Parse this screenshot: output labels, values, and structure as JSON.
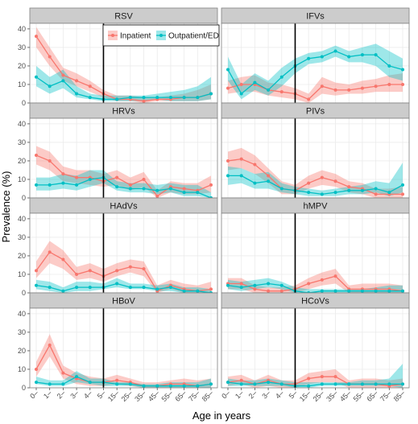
{
  "chart_data": {
    "type": "line",
    "xlabel": "Age in years",
    "ylabel": "Prevalence (%)",
    "ylim": [
      0,
      43
    ],
    "yticks": [
      0,
      10,
      20,
      30,
      40
    ],
    "x_categories": [
      "0–",
      "1–",
      "2–",
      "3–",
      "4–",
      "5–",
      "15–",
      "25–",
      "35–",
      "45–",
      "55–",
      "65–",
      "75–",
      "85–"
    ],
    "reference_line_at": "5–",
    "legend": {
      "position": "top-center (inside RSV panel)",
      "entries": [
        "Inpatient",
        "Outpatient/ED"
      ]
    },
    "colors": {
      "inpatient": "#F8766D",
      "outpatient": "#00BFC4",
      "strip": "#cccccc",
      "panel_border": "#808080",
      "grid": "#ebebeb"
    },
    "panels": [
      {
        "title": "RSV",
        "series": [
          {
            "name": "Inpatient",
            "values": [
              36,
              25,
              15,
              12,
              9,
              5,
              2,
              2,
              1,
              2,
              2,
              3,
              3,
              5
            ],
            "lower": [
              30,
              20,
              12,
              9,
              6,
              3,
              1,
              1,
              0,
              1,
              1,
              1,
              1,
              2
            ],
            "upper": [
              41,
              30,
              19,
              16,
              12,
              7,
              4,
              4,
              3,
              3,
              4,
              5,
              7,
              10
            ]
          },
          {
            "name": "Outpatient/ED",
            "values": [
              14,
              9,
              12,
              5,
              3,
              2,
              2,
              3,
              3,
              3,
              3,
              3,
              3,
              5
            ],
            "lower": [
              9,
              5,
              8,
              3,
              2,
              1,
              1,
              1,
              1,
              2,
              1,
              1,
              1,
              2
            ],
            "upper": [
              20,
              14,
              18,
              9,
              5,
              4,
              4,
              4,
              4,
              5,
              6,
              7,
              9,
              14
            ]
          }
        ]
      },
      {
        "title": "IFVs",
        "series": [
          {
            "name": "Inpatient",
            "values": [
              8,
              10,
              10,
              7,
              6,
              5,
              2,
              9,
              7,
              7,
              8,
              9,
              10,
              10
            ],
            "lower": [
              5,
              6,
              6,
              4,
              3,
              2,
              0,
              5,
              4,
              5,
              5,
              6,
              6,
              6
            ],
            "upper": [
              12,
              14,
              15,
              11,
              10,
              8,
              5,
              14,
              11,
              10,
              12,
              13,
              15,
              16
            ]
          },
          {
            "name": "Outpatient/ED",
            "values": [
              18,
              5,
              11,
              7,
              14,
              20,
              24,
              25,
              28,
              25,
              26,
              26,
              20,
              18
            ],
            "lower": [
              12,
              2,
              7,
              4,
              9,
              16,
              21,
              22,
              25,
              22,
              22,
              20,
              14,
              12
            ],
            "upper": [
              25,
              10,
              16,
              12,
              19,
              24,
              27,
              28,
              31,
              28,
              30,
              32,
              28,
              24
            ]
          }
        ]
      },
      {
        "title": "HRVs",
        "series": [
          {
            "name": "Inpatient",
            "values": [
              23,
              20,
              13,
              11,
              11,
              9,
              11,
              7,
              10,
              1,
              6,
              5,
              4,
              7
            ],
            "lower": [
              18,
              15,
              9,
              8,
              7,
              6,
              7,
              4,
              6,
              0,
              3,
              2,
              2,
              3
            ],
            "upper": [
              28,
              25,
              17,
              15,
              15,
              13,
              15,
              11,
              14,
              4,
              9,
              8,
              8,
              12
            ]
          },
          {
            "name": "Outpatient/ED",
            "values": [
              7,
              7,
              8,
              7,
              10,
              11,
              6,
              5,
              5,
              4,
              5,
              3,
              3,
              0
            ],
            "lower": [
              4,
              4,
              5,
              4,
              6,
              8,
              4,
              3,
              3,
              2,
              3,
              1,
              1,
              0
            ],
            "upper": [
              11,
              11,
              13,
              12,
              15,
              15,
              9,
              8,
              8,
              7,
              8,
              7,
              7,
              3
            ]
          }
        ]
      },
      {
        "title": "PIVs",
        "series": [
          {
            "name": "Inpatient",
            "values": [
              20,
              21,
              18,
              12,
              5,
              4,
              8,
              11,
              9,
              6,
              5,
              2,
              2,
              2
            ],
            "lower": [
              15,
              16,
              13,
              8,
              2,
              2,
              5,
              7,
              6,
              3,
              2,
              0,
              0,
              0
            ],
            "upper": [
              25,
              27,
              23,
              16,
              9,
              7,
              12,
              15,
              13,
              9,
              8,
              5,
              5,
              6
            ]
          },
          {
            "name": "Outpatient/ED",
            "values": [
              12,
              12,
              8,
              9,
              5,
              4,
              3,
              2,
              3,
              4,
              4,
              5,
              3,
              7
            ],
            "lower": [
              7,
              8,
              5,
              5,
              3,
              2,
              1,
              1,
              1,
              2,
              2,
              3,
              1,
              3
            ],
            "upper": [
              17,
              16,
              13,
              14,
              8,
              6,
              5,
              4,
              5,
              6,
              7,
              9,
              8,
              19
            ]
          }
        ]
      },
      {
        "title": "HAdVs",
        "series": [
          {
            "name": "Inpatient",
            "values": [
              12,
              22,
              18,
              10,
              12,
              9,
              12,
              14,
              13,
              1,
              4,
              2,
              1,
              2
            ],
            "lower": [
              8,
              16,
              13,
              7,
              8,
              6,
              9,
              11,
              9,
              0,
              2,
              0,
              0,
              0
            ],
            "upper": [
              17,
              28,
              23,
              14,
              16,
              13,
              16,
              18,
              17,
              4,
              7,
              5,
              4,
              6
            ]
          },
          {
            "name": "Outpatient/ED",
            "values": [
              4,
              3,
              1,
              3,
              3,
              3,
              5,
              3,
              3,
              2,
              3,
              1,
              1,
              0
            ],
            "lower": [
              2,
              1,
              0,
              1,
              1,
              2,
              3,
              2,
              2,
              1,
              1,
              0,
              0,
              0
            ],
            "upper": [
              7,
              6,
              3,
              6,
              6,
              5,
              8,
              5,
              5,
              4,
              5,
              3,
              3,
              2
            ]
          }
        ]
      },
      {
        "title": "hMPV",
        "series": [
          {
            "name": "Inpatient",
            "values": [
              5,
              5,
              2,
              1,
              1,
              2,
              5,
              7,
              9,
              2,
              2,
              2,
              2,
              1
            ],
            "lower": [
              2,
              2,
              0,
              0,
              0,
              0,
              2,
              4,
              5,
              0,
              0,
              0,
              0,
              0
            ],
            "upper": [
              8,
              8,
              4,
              3,
              3,
              4,
              8,
              11,
              13,
              4,
              5,
              5,
              5,
              4
            ]
          },
          {
            "name": "Outpatient/ED",
            "values": [
              4,
              3,
              4,
              5,
              4,
              1,
              0,
              1,
              1,
              1,
              1,
              1,
              1,
              1
            ],
            "lower": [
              2,
              1,
              2,
              3,
              2,
              0,
              0,
              0,
              0,
              0,
              0,
              0,
              0,
              0
            ],
            "upper": [
              7,
              6,
              7,
              8,
              6,
              3,
              2,
              2,
              2,
              2,
              2,
              3,
              4,
              4
            ]
          }
        ]
      },
      {
        "title": "HBoV",
        "series": [
          {
            "name": "Inpatient",
            "values": [
              10,
              23,
              8,
              5,
              3,
              3,
              4,
              3,
              1,
              1,
              2,
              2,
              1,
              2
            ],
            "lower": [
              6,
              17,
              5,
              2,
              1,
              1,
              2,
              1,
              0,
              0,
              0,
              0,
              0,
              0
            ],
            "upper": [
              14,
              29,
              12,
              8,
              6,
              5,
              7,
              5,
              3,
              3,
              4,
              5,
              4,
              5
            ]
          },
          {
            "name": "Outpatient/ED",
            "values": [
              3,
              2,
              2,
              6,
              3,
              3,
              2,
              2,
              1,
              1,
              1,
              1,
              1,
              2
            ],
            "lower": [
              2,
              1,
              1,
              3,
              2,
              1,
              1,
              1,
              0,
              0,
              0,
              0,
              0,
              0
            ],
            "upper": [
              6,
              4,
              4,
              9,
              5,
              5,
              3,
              3,
              2,
              2,
              3,
              3,
              3,
              5
            ]
          }
        ]
      },
      {
        "title": "HCoVs",
        "series": [
          {
            "name": "Inpatient",
            "values": [
              3,
              4,
              2,
              4,
              2,
              2,
              5,
              6,
              6,
              2,
              2,
              2,
              1,
              2
            ],
            "lower": [
              1,
              2,
              0,
              1,
              0,
              0,
              2,
              3,
              3,
              0,
              0,
              0,
              0,
              0
            ],
            "upper": [
              6,
              7,
              4,
              7,
              4,
              4,
              8,
              9,
              10,
              4,
              5,
              5,
              4,
              5
            ]
          },
          {
            "name": "Outpatient/ED",
            "values": [
              3,
              2,
              2,
              3,
              2,
              1,
              1,
              2,
              2,
              2,
              2,
              2,
              2,
              2
            ],
            "lower": [
              1,
              1,
              1,
              1,
              1,
              0,
              0,
              1,
              1,
              1,
              1,
              1,
              1,
              0
            ],
            "upper": [
              5,
              4,
              4,
              5,
              4,
              3,
              3,
              3,
              3,
              3,
              4,
              4,
              5,
              13
            ]
          }
        ]
      }
    ]
  }
}
